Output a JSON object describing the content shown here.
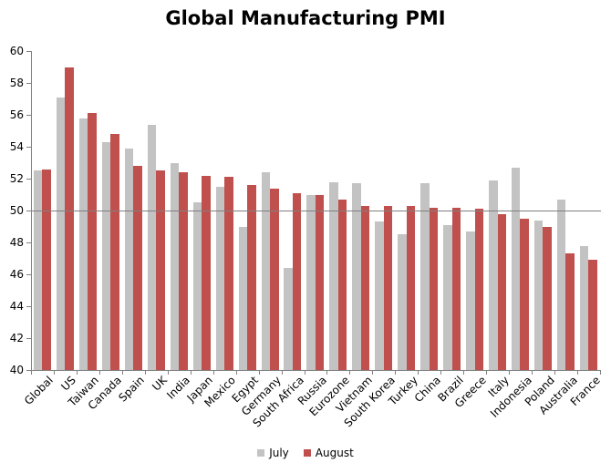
{
  "chart_data": {
    "type": "bar",
    "title": "Global Manufacturing PMI",
    "categories": [
      "Global",
      "US",
      "Taiwan",
      "Canada",
      "Spain",
      "UK",
      "India",
      "Japan",
      "Mexico",
      "Egypt",
      "Germany",
      "South Africa",
      "Russia",
      "Eurozone",
      "Vietnam",
      "South Korea",
      "Turkey",
      "China",
      "Brazil",
      "Greece",
      "Italy",
      "Indonesia",
      "Poland",
      "Australia",
      "France"
    ],
    "series": [
      {
        "name": "July",
        "color": "#C3C3C3",
        "values": [
          52.5,
          57.1,
          55.8,
          54.3,
          53.9,
          55.4,
          53.0,
          50.5,
          51.5,
          49.0,
          52.4,
          46.4,
          51.0,
          51.8,
          51.7,
          49.3,
          48.5,
          51.7,
          49.1,
          48.7,
          51.9,
          52.7,
          49.4,
          50.7,
          47.8
        ]
      },
      {
        "name": "August",
        "color": "#C0504D",
        "values": [
          52.6,
          59.0,
          56.1,
          54.8,
          52.8,
          52.5,
          52.4,
          52.2,
          52.1,
          51.6,
          51.4,
          51.1,
          51.0,
          50.7,
          50.3,
          50.3,
          50.3,
          50.2,
          50.2,
          50.1,
          49.8,
          49.5,
          49.0,
          47.3,
          46.9
        ]
      }
    ],
    "ylim": [
      40,
      60
    ],
    "yticks": [
      40,
      42,
      44,
      46,
      48,
      50,
      52,
      54,
      56,
      58,
      60
    ],
    "reference_line": 50,
    "legend_position": "bottom",
    "grid": false,
    "axis_color": "#808080",
    "text_color": "#000000",
    "background_color": "#FFFFFF",
    "xlabel": "",
    "ylabel": ""
  }
}
